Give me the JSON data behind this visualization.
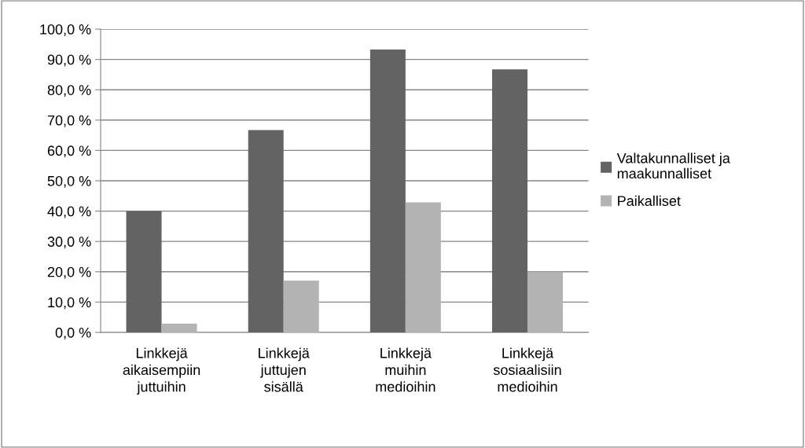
{
  "chart_data": {
    "type": "bar",
    "categories": [
      "Linkkejä\naikaisempiin\njuttuihin",
      "Linkkejä\njuttujen\nsisällä",
      "Linkkejä\nmuihin\nmedioihin",
      "Linkkejä\nsosiaalisiin\nmedioihin"
    ],
    "series": [
      {
        "name": "Valtakunnalliset ja\nmaakunnalliset",
        "color": "#636363",
        "values": [
          40.0,
          66.7,
          93.3,
          86.7
        ]
      },
      {
        "name": "Paikalliset",
        "color": "#b3b3b3",
        "values": [
          2.9,
          17.1,
          42.9,
          20.0
        ]
      }
    ],
    "ylim": [
      0,
      100
    ],
    "yticks": [
      {
        "value": 0,
        "label": "0,0 %"
      },
      {
        "value": 10,
        "label": "10,0 %"
      },
      {
        "value": 20,
        "label": "20,0 %"
      },
      {
        "value": 30,
        "label": "30,0 %"
      },
      {
        "value": 40,
        "label": "40,0 %"
      },
      {
        "value": 50,
        "label": "50,0 %"
      },
      {
        "value": 60,
        "label": "60,0 %"
      },
      {
        "value": 70,
        "label": "70,0 %"
      },
      {
        "value": 80,
        "label": "80,0 %"
      },
      {
        "value": 90,
        "label": "90,0 %"
      },
      {
        "value": 100,
        "label": "100,0 %"
      }
    ],
    "grid": "y",
    "legend": "right"
  }
}
